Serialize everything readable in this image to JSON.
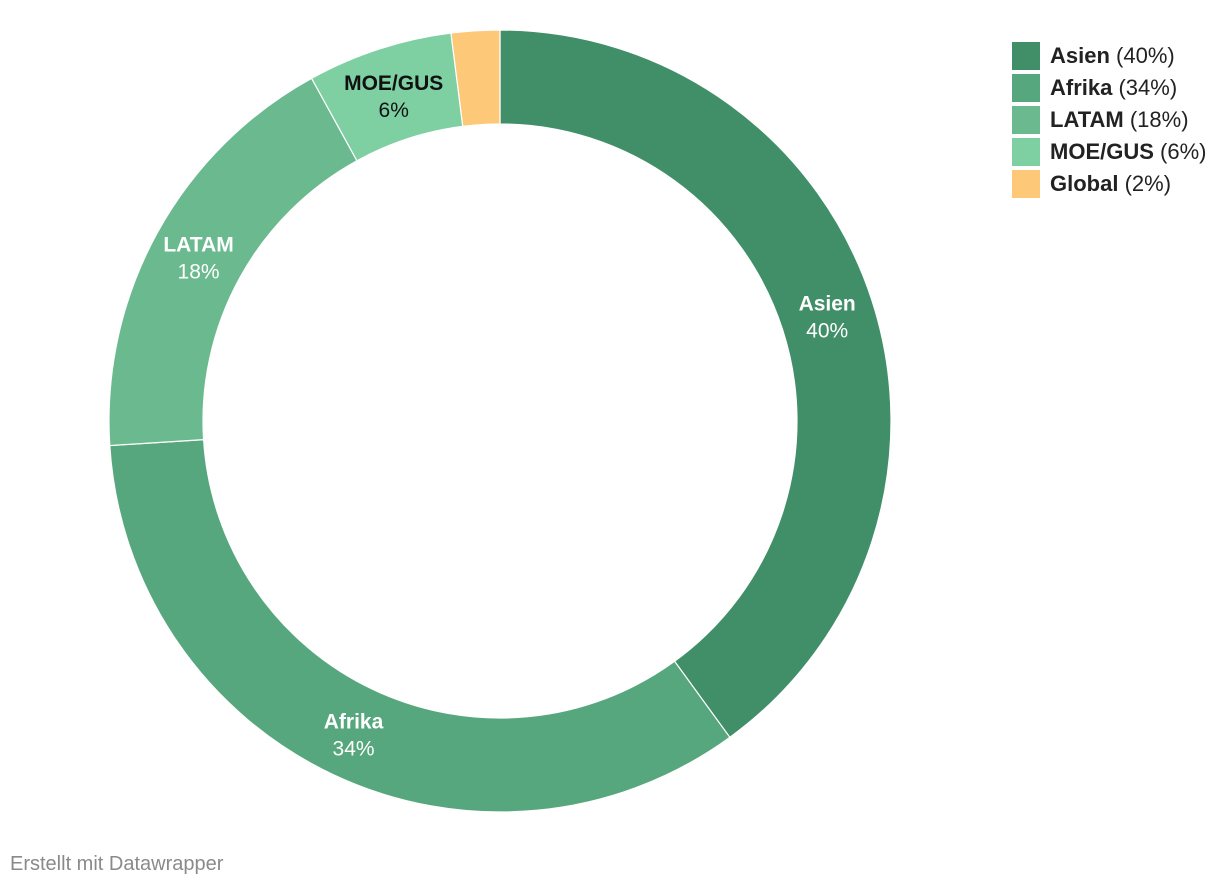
{
  "chart_data": {
    "type": "pie",
    "donut": true,
    "slices": [
      {
        "name": "Asien",
        "value": 40,
        "label": "40%",
        "legend_label": "(40%)",
        "color": "#408F68",
        "label_color": "#ffffff"
      },
      {
        "name": "Afrika",
        "value": 34,
        "label": "34%",
        "legend_label": "(34%)",
        "color": "#56A77D",
        "label_color": "#ffffff"
      },
      {
        "name": "LATAM",
        "value": 18,
        "label": "18%",
        "legend_label": "(18%)",
        "color": "#6BBA8F",
        "label_color": "#ffffff"
      },
      {
        "name": "MOE/GUS",
        "value": 6,
        "label": "6%",
        "legend_label": "(6%)",
        "color": "#7ED0A3",
        "label_color": "#111111"
      },
      {
        "name": "Global",
        "value": 2,
        "label": "",
        "legend_label": "(2%)",
        "color": "#FDC877",
        "label_color": "#111111"
      }
    ],
    "legend_position": "top-right"
  },
  "footer": {
    "credit": "Erstellt mit Datawrapper"
  }
}
